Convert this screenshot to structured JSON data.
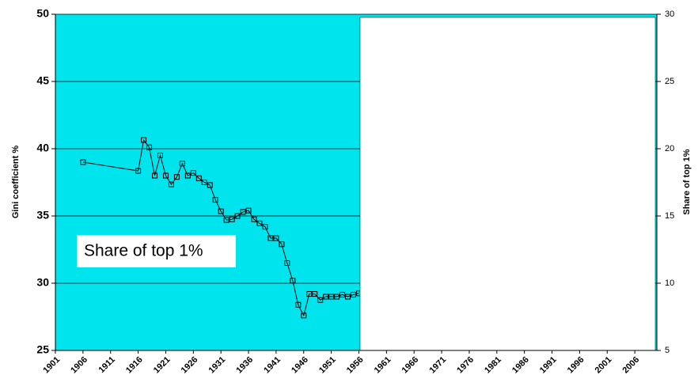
{
  "chart_data": {
    "type": "line",
    "y_label": "Gini coefficient %",
    "y2_label": "Share of top 1%",
    "x": [
      1906,
      1916,
      1917,
      1918,
      1919,
      1920,
      1921,
      1922,
      1923,
      1924,
      1925,
      1926,
      1927,
      1928,
      1929,
      1930,
      1931,
      1932,
      1933,
      1934,
      1935,
      1936,
      1937,
      1938,
      1939,
      1940,
      1941,
      1942,
      1943,
      1944,
      1945,
      1946,
      1947,
      1948,
      1949,
      1950,
      1951,
      1952,
      1953,
      1954,
      1955,
      1956
    ],
    "series": [
      {
        "name": "Share of top 1%",
        "color": "#000000",
        "axis": "y2",
        "values": [
          19.0,
          18.35,
          20.65,
          20.1,
          18.0,
          19.5,
          18.0,
          17.35,
          17.9,
          18.9,
          18.0,
          18.2,
          17.8,
          17.5,
          17.3,
          16.2,
          15.35,
          14.7,
          14.75,
          15.0,
          15.3,
          15.4,
          14.75,
          14.45,
          14.2,
          13.35,
          13.35,
          12.9,
          11.5,
          10.2,
          8.4,
          7.6,
          9.2,
          9.2,
          8.75,
          9.0,
          9.0,
          9.0,
          9.15,
          9.0,
          9.15,
          9.25
        ]
      }
    ],
    "xlim": [
      1901,
      2010
    ],
    "xticks": [
      1901,
      1906,
      1911,
      1916,
      1921,
      1926,
      1931,
      1936,
      1941,
      1946,
      1951,
      1956,
      1961,
      1966,
      1971,
      1976,
      1981,
      1986,
      1991,
      1996,
      2001,
      2006
    ],
    "ylim": [
      25,
      50
    ],
    "yticks": [
      25,
      30,
      35,
      40,
      45,
      50
    ],
    "y2lim": [
      5,
      30
    ],
    "y2ticks": [
      5,
      10,
      15,
      20,
      25,
      30
    ],
    "grid": true,
    "background": "#00e4ee"
  }
}
